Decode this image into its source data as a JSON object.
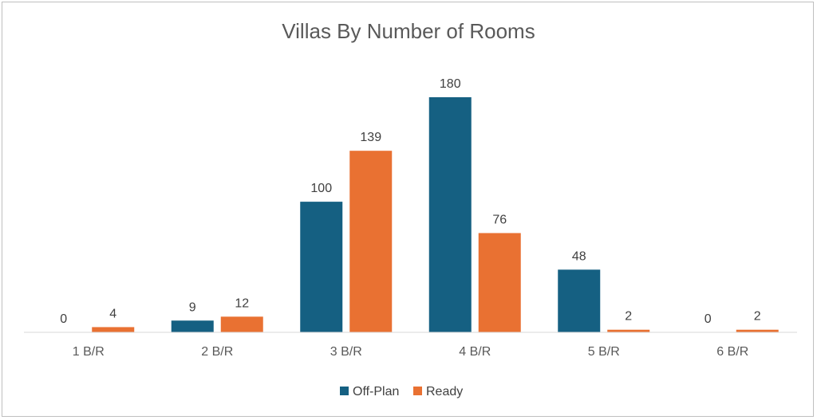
{
  "chart_data": {
    "type": "bar",
    "title": "Villas By Number of Rooms",
    "categories": [
      "1 B/R",
      "2 B/R",
      "3 B/R",
      "4 B/R",
      "5 B/R",
      "6 B/R"
    ],
    "series": [
      {
        "name": "Off-Plan",
        "values": [
          0,
          9,
          100,
          180,
          48,
          0
        ],
        "color": "#156082"
      },
      {
        "name": "Ready",
        "values": [
          4,
          12,
          139,
          76,
          2,
          2
        ],
        "color": "#E97132"
      }
    ],
    "xlabel": "",
    "ylabel": "",
    "ylim": [
      0,
      180
    ],
    "grid": false,
    "data_labels": true,
    "legend": "bottom"
  }
}
